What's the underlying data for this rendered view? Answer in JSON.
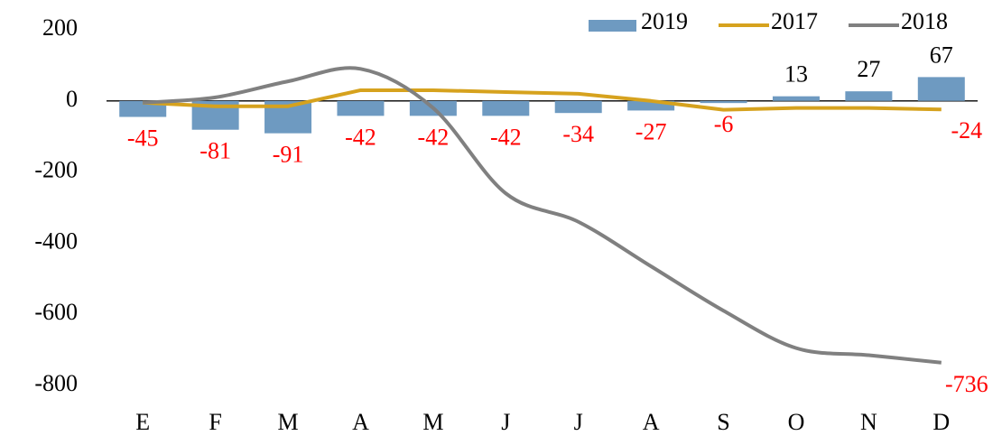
{
  "chart_data": {
    "type": "bar",
    "categories": [
      "E",
      "F",
      "M",
      "A",
      "M",
      "J",
      "J",
      "A",
      "S",
      "O",
      "N",
      "D"
    ],
    "series": [
      {
        "name": "2019",
        "type": "bar",
        "color": "#6e9ac1",
        "values": [
          -45,
          -81,
          -91,
          -42,
          -42,
          -42,
          -34,
          -27,
          -6,
          13,
          27,
          67
        ]
      },
      {
        "name": "2017",
        "type": "line",
        "color": "#d6a21e",
        "values": [
          -5,
          -15,
          -15,
          30,
          30,
          25,
          20,
          0,
          -25,
          -20,
          -20,
          -24
        ]
      },
      {
        "name": "2018",
        "type": "smooth-line",
        "color": "#808080",
        "values": [
          -5,
          10,
          55,
          90,
          -20,
          -260,
          -340,
          -465,
          -590,
          -695,
          -715,
          -736
        ]
      }
    ],
    "ylim": [
      -800,
      200
    ],
    "yticks": [
      200,
      0,
      -200,
      -400,
      -600,
      -800
    ],
    "negative_label_color": "#ff0000",
    "legend": "top-right"
  }
}
